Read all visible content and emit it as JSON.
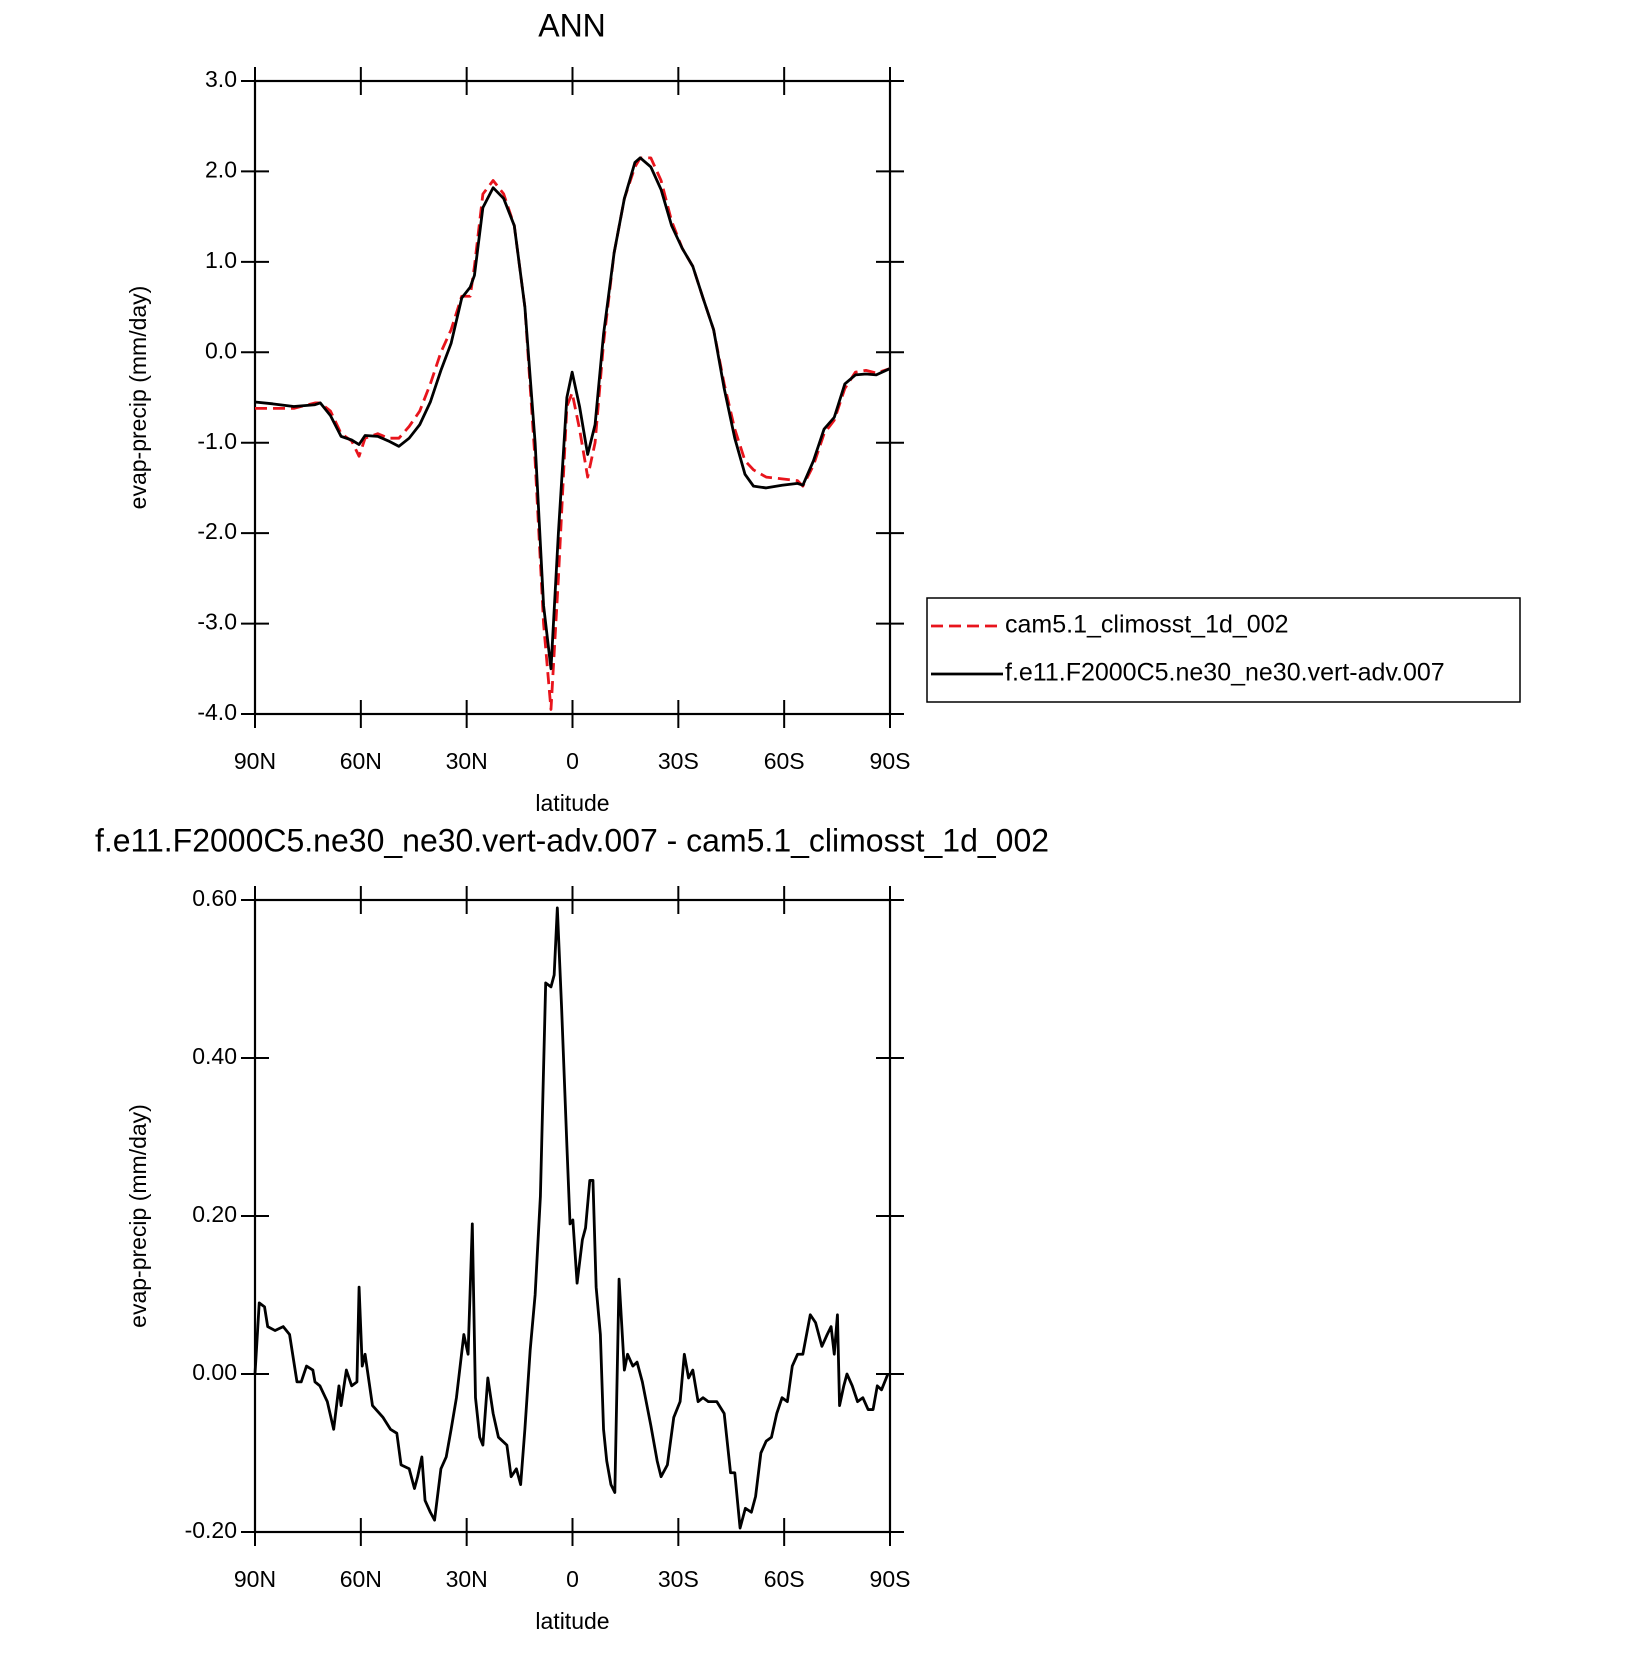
{
  "chart_data": [
    {
      "type": "line",
      "title": "ANN",
      "x_label": "latitude",
      "y_label": "evap-precip (mm/day)",
      "xlim": [
        90,
        -90
      ],
      "xticks": [
        {
          "value": 90,
          "label": "90N"
        },
        {
          "value": 60,
          "label": "60N"
        },
        {
          "value": 30,
          "label": "30N"
        },
        0,
        {
          "value": -30,
          "label": "30S"
        },
        {
          "value": -60,
          "label": "60S"
        },
        {
          "value": -90,
          "label": "90S"
        }
      ],
      "ylim": [
        -4,
        3
      ],
      "yticks": [
        {
          "value": -4,
          "label": "-4.0"
        },
        {
          "value": -3,
          "label": "-3.0"
        },
        {
          "value": -2,
          "label": "-2.0"
        },
        {
          "value": -1,
          "label": "-1.0"
        },
        {
          "value": 0,
          "label": "0.0"
        },
        {
          "value": 1,
          "label": "1.0"
        },
        {
          "value": 2,
          "label": "2.0"
        },
        {
          "value": 3,
          "label": "3.0"
        }
      ],
      "legend": "right",
      "x": [
        90,
        85,
        79,
        73,
        71.5,
        68.6,
        65.6,
        62.6,
        60.5,
        58.8,
        55.2,
        52.2,
        49.2,
        46.3,
        43.3,
        40.3,
        37.3,
        34.4,
        31.4,
        29.0,
        27.8,
        25.4,
        22.5,
        19.5,
        16.5,
        13.5,
        10.6,
        8.2,
        6.1,
        4.0,
        1.6,
        0.1,
        -2.0,
        -4.3,
        -6.4,
        -8.8,
        -11.8,
        -14.7,
        -17.7,
        -19.2,
        -22.2,
        -25.1,
        -28.1,
        -31.1,
        -34.1,
        -37.0,
        -40.0,
        -43.0,
        -46.0,
        -48.9,
        -51.3,
        -54.9,
        -59.4,
        -63.8,
        -65.3,
        -68.3,
        -71.3,
        -74.2,
        -77.2,
        -80.2,
        -83.2,
        -86.1,
        -90
      ],
      "series": [
        {
          "name": "cam5.1_climosst_1d_002",
          "color": "#e8141c",
          "dash": "dashed",
          "values": [
            -0.62,
            -0.62,
            -0.62,
            -0.56,
            -0.56,
            -0.65,
            -0.9,
            -0.98,
            -1.15,
            -0.95,
            -0.9,
            -0.95,
            -0.95,
            -0.82,
            -0.65,
            -0.35,
            0.0,
            0.25,
            0.62,
            0.62,
            0.95,
            1.75,
            1.9,
            1.75,
            1.4,
            0.5,
            -1.2,
            -3.0,
            -3.95,
            -2.5,
            -0.6,
            -0.45,
            -0.85,
            -1.38,
            -1.0,
            0.1,
            1.1,
            1.7,
            2.05,
            2.15,
            2.15,
            1.9,
            1.45,
            1.15,
            0.95,
            0.6,
            0.25,
            -0.35,
            -0.85,
            -1.2,
            -1.3,
            -1.38,
            -1.4,
            -1.42,
            -1.48,
            -1.25,
            -0.9,
            -0.75,
            -0.4,
            -0.22,
            -0.2,
            -0.23,
            -0.18
          ]
        },
        {
          "name": "f.e11.F2000C5.ne30_ne30.vert-adv.007",
          "color": "#000000",
          "dash": "solid",
          "values": [
            -0.55,
            -0.57,
            -0.6,
            -0.58,
            -0.56,
            -0.7,
            -0.93,
            -0.97,
            -1.02,
            -0.92,
            -0.93,
            -0.98,
            -1.04,
            -0.95,
            -0.8,
            -0.55,
            -0.2,
            0.1,
            0.6,
            0.72,
            0.85,
            1.6,
            1.82,
            1.7,
            1.4,
            0.5,
            -1.0,
            -2.8,
            -3.5,
            -2.0,
            -0.5,
            -0.22,
            -0.6,
            -1.13,
            -0.8,
            0.2,
            1.1,
            1.7,
            2.1,
            2.15,
            2.05,
            1.8,
            1.4,
            1.15,
            0.95,
            0.6,
            0.25,
            -0.4,
            -0.95,
            -1.35,
            -1.48,
            -1.5,
            -1.47,
            -1.45,
            -1.47,
            -1.2,
            -0.85,
            -0.72,
            -0.35,
            -0.25,
            -0.24,
            -0.25,
            -0.18
          ]
        }
      ]
    },
    {
      "type": "line",
      "title": "f.e11.F2000C5.ne30_ne30.vert-adv.007 - cam5.1_climosst_1d_002",
      "x_label": "latitude",
      "y_label": "evap-precip (mm/day)",
      "xlim": [
        90,
        -90
      ],
      "xticks": [
        {
          "value": 90,
          "label": "90N"
        },
        {
          "value": 60,
          "label": "60N"
        },
        {
          "value": 30,
          "label": "30N"
        },
        0,
        {
          "value": -30,
          "label": "30S"
        },
        {
          "value": -60,
          "label": "60S"
        },
        {
          "value": -90,
          "label": "90S"
        }
      ],
      "ylim": [
        -0.2,
        0.6
      ],
      "yticks": [
        {
          "value": -0.2,
          "label": "-0.20"
        },
        {
          "value": 0,
          "label": "0.00"
        },
        {
          "value": 0.2,
          "label": "0.20"
        },
        {
          "value": 0.4,
          "label": "0.40"
        },
        {
          "value": 0.6,
          "label": "0.60"
        }
      ],
      "x": [
        90,
        88.8,
        87.3,
        86.4,
        84.3,
        82.0,
        80.2,
        78.1,
        76.9,
        75.4,
        73.6,
        73.0,
        71.6,
        69.5,
        67.7,
        66.2,
        65.6,
        64.1,
        62.6,
        61.1,
        60.5,
        59.6,
        58.8,
        56.7,
        53.7,
        51.6,
        49.8,
        48.6,
        46.3,
        44.8,
        43.9,
        42.7,
        41.8,
        40.3,
        39.1,
        37.3,
        35.8,
        34.4,
        32.9,
        30.8,
        29.6,
        28.4,
        27.5,
        26.3,
        25.4,
        24.0,
        22.5,
        21.0,
        18.6,
        17.4,
        15.9,
        14.7,
        13.5,
        12.0,
        10.6,
        9.1,
        7.6,
        6.1,
        5.2,
        4.3,
        3.1,
        1.6,
        0.7,
        -0.1,
        -1.3,
        -2.8,
        -3.7,
        -4.9,
        -5.8,
        -6.7,
        -7.9,
        -8.8,
        -9.7,
        -10.9,
        -12.0,
        -13.2,
        -14.7,
        -15.6,
        -17.1,
        -18.3,
        -19.8,
        -22.2,
        -24.0,
        -25.1,
        -26.9,
        -28.7,
        -30.5,
        -31.7,
        -32.9,
        -34.1,
        -35.6,
        -37.0,
        -38.5,
        -40.9,
        -43.0,
        -44.8,
        -46.0,
        -47.5,
        -49.0,
        -50.7,
        -51.9,
        -53.4,
        -54.9,
        -56.4,
        -57.9,
        -59.4,
        -60.9,
        -62.3,
        -63.8,
        -65.3,
        -67.4,
        -68.9,
        -70.7,
        -72.2,
        -73.3,
        -74.2,
        -75.1,
        -75.7,
        -76.9,
        -77.8,
        -79.3,
        -80.8,
        -82.3,
        -83.8,
        -85.2,
        -86.4,
        -87.6,
        -89.4
      ],
      "series": [
        {
          "name": "f.e11.F2000C5.ne30_ne30.vert-adv.007 - cam5.1_climosst_1d_002",
          "color": "#000000",
          "dash": "solid",
          "values": [
            0.0,
            0.09,
            0.085,
            0.06,
            0.055,
            0.06,
            0.05,
            -0.01,
            -0.01,
            0.01,
            0.005,
            -0.01,
            -0.015,
            -0.035,
            -0.07,
            -0.015,
            -0.04,
            0.005,
            -0.015,
            -0.01,
            0.11,
            0.01,
            0.025,
            -0.04,
            -0.055,
            -0.07,
            -0.075,
            -0.115,
            -0.12,
            -0.145,
            -0.13,
            -0.105,
            -0.16,
            -0.175,
            -0.185,
            -0.12,
            -0.105,
            -0.07,
            -0.03,
            0.05,
            0.025,
            0.19,
            -0.03,
            -0.08,
            -0.09,
            -0.005,
            -0.05,
            -0.08,
            -0.09,
            -0.13,
            -0.12,
            -0.14,
            -0.07,
            0.03,
            0.1,
            0.225,
            0.495,
            0.49,
            0.505,
            0.59,
            0.465,
            0.29,
            0.19,
            0.195,
            0.115,
            0.17,
            0.185,
            0.245,
            0.245,
            0.11,
            0.05,
            -0.07,
            -0.11,
            -0.14,
            -0.15,
            0.12,
            0.005,
            0.025,
            0.01,
            0.015,
            -0.01,
            -0.065,
            -0.11,
            -0.13,
            -0.115,
            -0.055,
            -0.035,
            0.025,
            -0.005,
            0.005,
            -0.035,
            -0.03,
            -0.035,
            -0.035,
            -0.05,
            -0.125,
            -0.125,
            -0.195,
            -0.17,
            -0.175,
            -0.155,
            -0.1,
            -0.085,
            -0.08,
            -0.05,
            -0.03,
            -0.035,
            0.01,
            0.025,
            0.025,
            0.075,
            0.065,
            0.035,
            0.05,
            0.06,
            0.025,
            0.075,
            -0.04,
            -0.015,
            0.0,
            -0.015,
            -0.035,
            -0.03,
            -0.045,
            -0.045,
            -0.015,
            -0.02,
            0.0
          ]
        }
      ]
    }
  ]
}
